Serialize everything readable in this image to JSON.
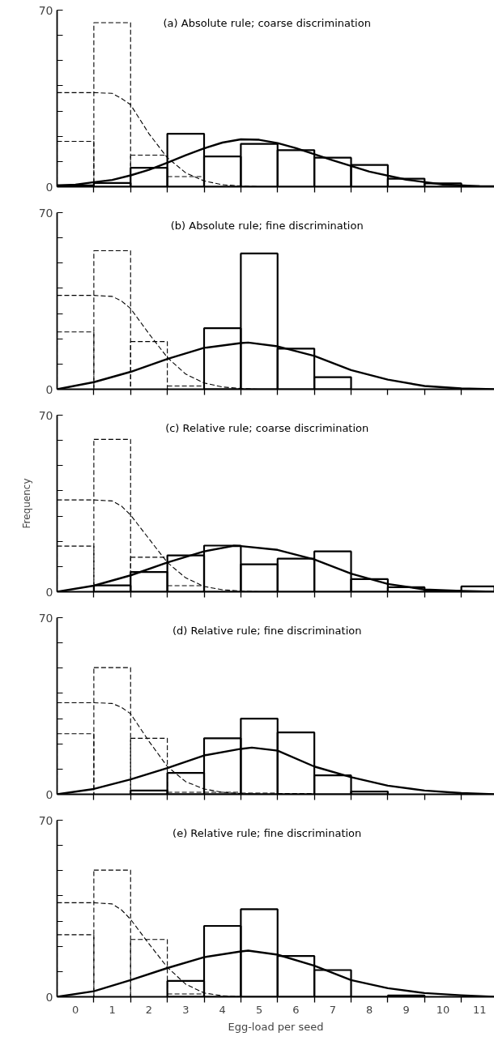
{
  "chart_data": [
    {
      "type": "histogram",
      "title": "(a) Absolute rule; coarse discrimination",
      "tick_labels": "y",
      "xlim": [
        -0.5,
        11.4
      ],
      "ylim": [
        0,
        70
      ],
      "xticks": [
        0,
        1,
        2,
        3,
        4,
        5,
        6,
        7,
        8,
        9,
        10,
        11,
        {
          "value": 0.5,
          "label": null
        },
        {
          "value": 1.5,
          "label": null
        },
        {
          "value": 2.5,
          "label": null
        },
        {
          "value": 3.5,
          "label": null
        },
        {
          "value": 4.5,
          "label": null
        },
        {
          "value": 5.5,
          "label": null
        },
        {
          "value": 6.5,
          "label": null
        },
        {
          "value": 7.5,
          "label": null
        },
        {
          "value": 8.5,
          "label": null
        },
        {
          "value": 9.5,
          "label": null
        },
        {
          "value": 10.5,
          "label": null
        }
      ],
      "yticks": [
        0,
        {
          "value": 10,
          "label": null
        },
        {
          "value": 20,
          "label": null
        },
        {
          "value": 30,
          "label": null
        },
        {
          "value": 40,
          "label": null
        },
        {
          "value": 50,
          "label": null
        },
        {
          "value": 60,
          "label": null
        },
        70
      ],
      "series": [
        {
          "type": "histogram",
          "color": "#000000",
          "line_style": "dashed",
          "bins": [
            -0.5,
            0.5,
            1.5,
            2.5,
            3.5
          ],
          "values": [
            18,
            65,
            12.5,
            4
          ]
        },
        {
          "type": "line",
          "color": "#000000",
          "line_style": "dashed",
          "x": [
            -0.5,
            0,
            0.5,
            1,
            1.25,
            1.5,
            2,
            2.5,
            3,
            3.5,
            4,
            4.5,
            5
          ],
          "values": [
            37.3,
            37.3,
            37.3,
            37,
            35,
            32.5,
            21,
            11.5,
            5.5,
            2.3,
            0.8,
            0.3,
            0
          ]
        },
        {
          "type": "histogram",
          "color": "#000000",
          "line_style": "solid",
          "bins": [
            -0.5,
            0.5,
            1.5,
            2.5,
            3.5,
            4.5,
            5.5,
            6.5,
            7.5,
            8.5,
            9.5,
            10.5,
            11.4
          ],
          "values": [
            0.5,
            1.5,
            7.5,
            21,
            12,
            17,
            14.5,
            11.5,
            8.6,
            3.2,
            1.3,
            0.2
          ]
        },
        {
          "type": "line",
          "color": "#000000",
          "line_style": "solid",
          "x": [
            -0.5,
            0,
            0.5,
            1,
            1.5,
            2,
            2.5,
            3,
            3.5,
            4,
            4.5,
            5,
            5.5,
            6,
            7,
            8,
            9,
            10,
            11,
            11.4
          ],
          "values": [
            0.5,
            0.8,
            1.8,
            2.7,
            4.5,
            6.7,
            9.5,
            12.5,
            15.2,
            17.5,
            18.8,
            18.6,
            17.3,
            15.3,
            10.5,
            6,
            2.8,
            0.9,
            0.2,
            0.1
          ]
        }
      ]
    },
    {
      "type": "histogram",
      "title": "(b) Absolute rule; fine discrimination",
      "tick_labels": "y",
      "xlim": [
        -0.5,
        11.4
      ],
      "ylim": [
        0,
        70
      ],
      "xticks": [
        0,
        1,
        2,
        3,
        4,
        5,
        6,
        7,
        8,
        9,
        10,
        11,
        {
          "value": 0.5,
          "label": null
        },
        {
          "value": 1.5,
          "label": null
        },
        {
          "value": 2.5,
          "label": null
        },
        {
          "value": 3.5,
          "label": null
        },
        {
          "value": 4.5,
          "label": null
        },
        {
          "value": 5.5,
          "label": null
        },
        {
          "value": 6.5,
          "label": null
        },
        {
          "value": 7.5,
          "label": null
        },
        {
          "value": 8.5,
          "label": null
        },
        {
          "value": 9.5,
          "label": null
        },
        {
          "value": 10.5,
          "label": null
        }
      ],
      "yticks": [
        0,
        {
          "value": 10,
          "label": null
        },
        {
          "value": 20,
          "label": null
        },
        {
          "value": 30,
          "label": null
        },
        {
          "value": 40,
          "label": null
        },
        {
          "value": 50,
          "label": null
        },
        {
          "value": 60,
          "label": null
        },
        70
      ],
      "series": [
        {
          "type": "histogram",
          "color": "#000000",
          "line_style": "dashed",
          "bins": [
            -0.5,
            0.5,
            1.5,
            2.5,
            3.5
          ],
          "values": [
            22.7,
            54.9,
            18.9,
            1.3
          ]
        },
        {
          "type": "line",
          "color": "#000000",
          "line_style": "dashed",
          "x": [
            -0.5,
            0,
            0.5,
            1,
            1.25,
            1.5,
            2,
            2.5,
            3,
            3.5,
            4,
            4.5,
            5
          ],
          "values": [
            37.2,
            37.2,
            37.2,
            36.8,
            35,
            32,
            22,
            12.6,
            6,
            2.5,
            0.9,
            0.3,
            0
          ]
        },
        {
          "type": "histogram",
          "color": "#000000",
          "line_style": "solid",
          "bins": [
            3.5,
            4.5,
            5.5,
            6.5,
            7.5
          ],
          "values": [
            24.2,
            53.8,
            16.1,
            4.8
          ]
        },
        {
          "type": "line",
          "color": "#000000",
          "line_style": "solid",
          "x": [
            -0.5,
            0.5,
            1.5,
            2.5,
            3.5,
            4.5,
            4.7,
            5.5,
            6.5,
            7.5,
            8.5,
            9.5,
            10.5,
            11.4
          ],
          "values": [
            0,
            2.8,
            6.9,
            12,
            16.4,
            18.3,
            18.5,
            17,
            13.2,
            7.6,
            3.8,
            1.3,
            0.3,
            0
          ]
        }
      ]
    },
    {
      "type": "histogram",
      "title": "(c) Relative rule; coarse discrimination",
      "ylabel": "Frequency",
      "tick_labels": "y",
      "xlim": [
        -0.5,
        11.4
      ],
      "ylim": [
        0,
        70
      ],
      "xticks": [
        0,
        1,
        2,
        3,
        4,
        5,
        6,
        7,
        8,
        9,
        10,
        11,
        {
          "value": 0.5,
          "label": null
        },
        {
          "value": 1.5,
          "label": null
        },
        {
          "value": 2.5,
          "label": null
        },
        {
          "value": 3.5,
          "label": null
        },
        {
          "value": 4.5,
          "label": null
        },
        {
          "value": 5.5,
          "label": null
        },
        {
          "value": 6.5,
          "label": null
        },
        {
          "value": 7.5,
          "label": null
        },
        {
          "value": 8.5,
          "label": null
        },
        {
          "value": 9.5,
          "label": null
        },
        {
          "value": 10.5,
          "label": null
        }
      ],
      "yticks": [
        0,
        {
          "value": 10,
          "label": null
        },
        {
          "value": 20,
          "label": null
        },
        {
          "value": 30,
          "label": null
        },
        {
          "value": 40,
          "label": null
        },
        {
          "value": 50,
          "label": null
        },
        {
          "value": 60,
          "label": null
        },
        70
      ],
      "series": [
        {
          "type": "histogram",
          "color": "#000000",
          "line_style": "dashed",
          "bins": [
            -0.5,
            0.5,
            1.5,
            2.5,
            3.5
          ],
          "values": [
            18.1,
            60.4,
            13.7,
            2.4
          ]
        },
        {
          "type": "line",
          "color": "#000000",
          "line_style": "dashed",
          "x": [
            -0.5,
            0,
            0.5,
            1,
            1.25,
            1.5,
            2,
            2.5,
            3,
            3.5,
            4,
            4.5,
            5
          ],
          "values": [
            36.4,
            36.4,
            36.4,
            36,
            34,
            30.4,
            21,
            11.6,
            5.5,
            2.1,
            0.8,
            0.3,
            0
          ]
        },
        {
          "type": "histogram",
          "color": "#000000",
          "line_style": "solid",
          "bins": [
            0.5,
            1.5,
            2.5,
            3.5,
            4.5,
            5.5,
            6.5,
            7.5,
            8.5,
            9.5,
            10.5,
            11.4
          ],
          "values": [
            2.5,
            7.8,
            14.4,
            18.3,
            10.9,
            13.1,
            16,
            5,
            1.8,
            0.3,
            2.1
          ]
        },
        {
          "type": "line",
          "color": "#000000",
          "line_style": "solid",
          "x": [
            -0.5,
            0.5,
            1.5,
            2.5,
            3.5,
            4.3,
            4.5,
            5.5,
            6.5,
            7.5,
            8.5,
            9.5,
            10.5,
            11.4
          ],
          "values": [
            0,
            2.4,
            6.5,
            11.6,
            16,
            18.2,
            18.1,
            16.6,
            12.8,
            7.2,
            3.1,
            0.9,
            0.3,
            0
          ]
        }
      ]
    },
    {
      "type": "histogram",
      "title": "(d) Relative rule; fine discrimination",
      "tick_labels": "y",
      "xlim": [
        -0.5,
        11.4
      ],
      "ylim": [
        0,
        70
      ],
      "xticks": [
        0,
        1,
        2,
        3,
        4,
        5,
        6,
        7,
        8,
        9,
        10,
        11,
        {
          "value": 0.5,
          "label": null
        },
        {
          "value": 1.5,
          "label": null
        },
        {
          "value": 2.5,
          "label": null
        },
        {
          "value": 3.5,
          "label": null
        },
        {
          "value": 4.5,
          "label": null
        },
        {
          "value": 5.5,
          "label": null
        },
        {
          "value": 6.5,
          "label": null
        },
        {
          "value": 7.5,
          "label": null
        },
        {
          "value": 8.5,
          "label": null
        },
        {
          "value": 9.5,
          "label": null
        },
        {
          "value": 10.5,
          "label": null
        }
      ],
      "yticks": [
        0,
        {
          "value": 10,
          "label": null
        },
        {
          "value": 20,
          "label": null
        },
        {
          "value": 30,
          "label": null
        },
        {
          "value": 40,
          "label": null
        },
        {
          "value": 50,
          "label": null
        },
        {
          "value": 60,
          "label": null
        },
        70
      ],
      "series": [
        {
          "type": "histogram",
          "color": "#000000",
          "line_style": "dashed",
          "bins": [
            -0.5,
            0.5,
            1.5,
            2.5,
            3.5,
            4.5,
            5.5,
            6.5
          ],
          "values": [
            24,
            50.2,
            22.2,
            0.8,
            0.8,
            0.5,
            0.3
          ]
        },
        {
          "type": "line",
          "color": "#000000",
          "line_style": "dashed",
          "x": [
            -0.5,
            0,
            0.5,
            1,
            1.25,
            1.5,
            2,
            2.5,
            3,
            3.5,
            4,
            4.5,
            5
          ],
          "values": [
            36.3,
            36.3,
            36.3,
            36,
            34.5,
            31.9,
            21,
            11,
            5,
            2.1,
            0.8,
            0.3,
            0
          ]
        },
        {
          "type": "histogram",
          "color": "#000000",
          "line_style": "solid",
          "bins": [
            1.5,
            2.5,
            3.5,
            4.5,
            5.5,
            6.5,
            7.5,
            8.5
          ],
          "values": [
            1.5,
            8.5,
            22.2,
            30,
            24.5,
            7.5,
            1.1
          ]
        },
        {
          "type": "line",
          "color": "#000000",
          "line_style": "solid",
          "x": [
            -0.5,
            0.5,
            1.5,
            2.5,
            3.5,
            4.5,
            4.8,
            5.5,
            6.5,
            7.5,
            8.5,
            9.5,
            10.5,
            11.4
          ],
          "values": [
            0,
            2.1,
            5.9,
            10.4,
            15.4,
            18,
            18.5,
            17.3,
            11,
            6.8,
            3.4,
            1.5,
            0.5,
            0
          ]
        }
      ]
    },
    {
      "type": "histogram",
      "title": "(e) Relative rule; fine discrimination",
      "xlabel": "Egg-load per seed",
      "xlim": [
        -0.5,
        11.4
      ],
      "ylim": [
        0,
        70
      ],
      "xticks": [
        0,
        1,
        2,
        3,
        4,
        5,
        6,
        7,
        8,
        9,
        10,
        11,
        {
          "value": 0.5,
          "label": null
        },
        {
          "value": 1.5,
          "label": null
        },
        {
          "value": 2.5,
          "label": null
        },
        {
          "value": 3.5,
          "label": null
        },
        {
          "value": 4.5,
          "label": null
        },
        {
          "value": 5.5,
          "label": null
        },
        {
          "value": 6.5,
          "label": null
        },
        {
          "value": 7.5,
          "label": null
        },
        {
          "value": 8.5,
          "label": null
        },
        {
          "value": 9.5,
          "label": null
        },
        {
          "value": 10.5,
          "label": null
        }
      ],
      "yticks": [
        0,
        {
          "value": 10,
          "label": null
        },
        {
          "value": 20,
          "label": null
        },
        {
          "value": 30,
          "label": null
        },
        {
          "value": 40,
          "label": null
        },
        {
          "value": 50,
          "label": null
        },
        {
          "value": 60,
          "label": null
        },
        70
      ],
      "series": [
        {
          "type": "histogram",
          "color": "#000000",
          "line_style": "dashed",
          "bins": [
            -0.5,
            0.5,
            1.5,
            2.5,
            3.5
          ],
          "values": [
            24.6,
            50.2,
            22.7,
            1.1
          ]
        },
        {
          "type": "line",
          "color": "#000000",
          "line_style": "dashed",
          "x": [
            -0.5,
            0,
            0.5,
            1,
            1.25,
            1.5,
            2,
            2.5,
            3,
            3.5,
            4,
            4.5
          ],
          "values": [
            37.3,
            37.3,
            37.3,
            36.8,
            34.5,
            30.7,
            21,
            11.7,
            5,
            1.5,
            0.4,
            0
          ]
        },
        {
          "type": "histogram",
          "color": "#000000",
          "line_style": "solid",
          "bins": [
            2.5,
            3.5,
            4.5,
            5.5,
            6.5,
            7.5,
            8.5,
            9.5
          ],
          "values": [
            6.3,
            28.1,
            34.7,
            16.2,
            10.6,
            0,
            0.5
          ]
        },
        {
          "type": "line",
          "color": "#000000",
          "line_style": "solid",
          "x": [
            -0.5,
            0.5,
            1.5,
            2.5,
            3.5,
            4.5,
            4.7,
            5.5,
            6.5,
            7.5,
            8.5,
            9.5,
            10.5,
            11.4
          ],
          "values": [
            0,
            2.2,
            6.6,
            11.4,
            15.7,
            18,
            18.3,
            16.7,
            12.3,
            6.6,
            3.4,
            1.5,
            0.6,
            0
          ]
        }
      ]
    }
  ]
}
